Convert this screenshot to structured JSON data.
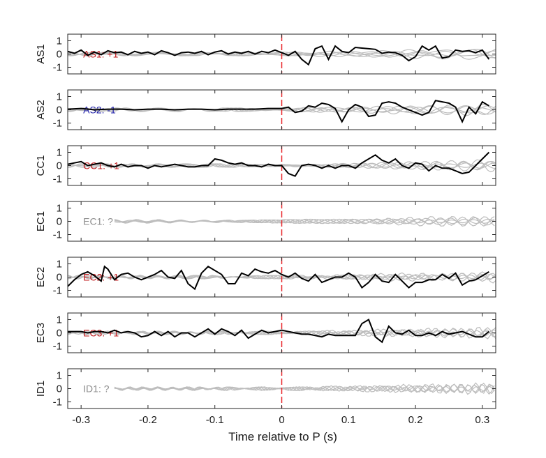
{
  "figure": {
    "xlabel": "Time relative to P (s)"
  },
  "chart_data": {
    "type": "line",
    "xlim": [
      -0.32,
      0.32
    ],
    "ylim": [
      -1.5,
      1.5
    ],
    "x_ticks": [
      -0.3,
      -0.2,
      -0.1,
      0,
      0.1,
      0.2,
      0.3
    ],
    "x_tick_labels": [
      "-0.3",
      "-0.2",
      "-0.1",
      "0",
      "0.1",
      "0.2",
      "0.3"
    ],
    "y_ticks": [
      1,
      0,
      -1
    ],
    "y_tick_labels": [
      "1",
      "0",
      "-1"
    ],
    "marker_x": 0,
    "colors": {
      "trace": "#000000",
      "background": "#bdbdbd",
      "marker": "#e8262a",
      "up": "#c0191b",
      "down": "#1a1aa8",
      "unknown": "#8c8c8c"
    },
    "panels": [
      {
        "station": "AS1",
        "label": "AS1: +1",
        "polarity": "up",
        "series": [
          {
            "x": [
              -0.32,
              -0.31,
              -0.3,
              -0.29,
              -0.28,
              -0.27,
              -0.26,
              -0.25,
              -0.24,
              -0.23,
              -0.22,
              -0.21,
              -0.2,
              -0.19,
              -0.18,
              -0.17,
              -0.16,
              -0.15,
              -0.14,
              -0.13,
              -0.12,
              -0.11,
              -0.1,
              -0.09,
              -0.08,
              -0.07,
              -0.06,
              -0.05,
              -0.04,
              -0.03,
              -0.02,
              -0.01,
              0,
              0.01,
              0.02,
              0.03,
              0.04,
              0.05,
              0.06,
              0.07,
              0.08,
              0.09,
              0.1,
              0.11,
              0.12,
              0.13,
              0.14,
              0.15,
              0.16,
              0.17,
              0.18,
              0.19,
              0.2,
              0.21,
              0.22,
              0.23,
              0.24,
              0.25,
              0.26,
              0.27,
              0.28,
              0.29,
              0.3,
              0.31
            ],
            "y": [
              0.2,
              0.05,
              0.3,
              -0.1,
              0.15,
              -0.05,
              0.25,
              0.1,
              0.15,
              -0.05,
              0.2,
              0.05,
              0.15,
              -0.05,
              0.25,
              0.1,
              -0.1,
              0.1,
              0.15,
              0.05,
              0.2,
              -0.05,
              0.15,
              0.25,
              0,
              0.15,
              0.05,
              0.2,
              0,
              0.2,
              0.1,
              0.3,
              0.1,
              -0.1,
              0.2,
              -0.4,
              -0.8,
              0.4,
              0.6,
              -0.4,
              0.6,
              0.2,
              0.1,
              0.5,
              0.45,
              0.4,
              0.35,
              0.05,
              0.15,
              0.1,
              -0.1,
              -0.5,
              -0.2,
              0.6,
              0.3,
              0.6,
              -0.3,
              -0.2,
              0.3,
              0.2,
              0.25,
              0.1,
              0.3,
              -0.4
            ]
          }
        ]
      },
      {
        "station": "AS2",
        "label": "AS2: -1",
        "polarity": "down",
        "series": [
          {
            "x": [
              -0.32,
              -0.3,
              -0.28,
              -0.26,
              -0.24,
              -0.22,
              -0.2,
              -0.18,
              -0.16,
              -0.14,
              -0.12,
              -0.1,
              -0.08,
              -0.06,
              -0.04,
              -0.02,
              0,
              0.01,
              0.02,
              0.03,
              0.04,
              0.05,
              0.06,
              0.07,
              0.08,
              0.09,
              0.1,
              0.11,
              0.12,
              0.13,
              0.14,
              0.15,
              0.16,
              0.17,
              0.18,
              0.19,
              0.2,
              0.21,
              0.22,
              0.23,
              0.24,
              0.25,
              0.26,
              0.27,
              0.28,
              0.29,
              0.3,
              0.31
            ],
            "y": [
              0.05,
              0.1,
              0,
              0.05,
              0.05,
              0,
              0.05,
              0.05,
              0,
              0.05,
              0.05,
              0,
              0.05,
              0.05,
              0.05,
              0.1,
              0.1,
              0.2,
              -0.2,
              -0.1,
              0.3,
              0.2,
              0.5,
              0.4,
              0.1,
              -0.9,
              0,
              0.4,
              0.2,
              -0.5,
              -0.4,
              0.5,
              0.6,
              0.5,
              0.2,
              0,
              -0.2,
              -0.4,
              -0.2,
              0.7,
              0.6,
              0.5,
              0.2,
              -0.9,
              0.2,
              -0.3,
              0.6,
              0.3
            ]
          }
        ]
      },
      {
        "station": "CC1",
        "label": "CC1: +1",
        "polarity": "up",
        "series": [
          {
            "x": [
              -0.32,
              -0.31,
              -0.3,
              -0.29,
              -0.28,
              -0.27,
              -0.26,
              -0.25,
              -0.24,
              -0.23,
              -0.22,
              -0.21,
              -0.2,
              -0.19,
              -0.18,
              -0.17,
              -0.16,
              -0.15,
              -0.14,
              -0.13,
              -0.12,
              -0.11,
              -0.1,
              -0.09,
              -0.08,
              -0.07,
              -0.06,
              -0.05,
              -0.04,
              -0.03,
              -0.02,
              -0.01,
              0,
              0.01,
              0.02,
              0.03,
              0.04,
              0.05,
              0.06,
              0.07,
              0.08,
              0.09,
              0.1,
              0.11,
              0.12,
              0.13,
              0.14,
              0.15,
              0.16,
              0.17,
              0.18,
              0.19,
              0.2,
              0.21,
              0.22,
              0.23,
              0.24,
              0.25,
              0.26,
              0.27,
              0.28,
              0.29,
              0.3,
              0.31
            ],
            "y": [
              0.1,
              0.2,
              0.3,
              0,
              0.1,
              0.2,
              0,
              -0.1,
              0.1,
              -0.1,
              0,
              0,
              -0.2,
              0,
              -0.1,
              0,
              0.1,
              0,
              -0.1,
              -0.1,
              0,
              0,
              0.5,
              0.4,
              0.2,
              0.1,
              0.2,
              0,
              0,
              -0.1,
              0.1,
              0,
              0,
              -0.6,
              -0.8,
              0,
              0.1,
              0,
              -0.2,
              0,
              -0.2,
              0,
              0,
              -0.2,
              0.2,
              0.5,
              0.8,
              0.4,
              0.2,
              0.5,
              0,
              -0.2,
              0.2,
              0.1,
              -0.4,
              0,
              -0.2,
              -0.2,
              -0.4,
              -0.6,
              -0.5,
              0,
              0.5,
              1.0
            ]
          }
        ]
      },
      {
        "station": "EC1",
        "label": "EC1: ?",
        "polarity": "unknown",
        "series": []
      },
      {
        "station": "EC2",
        "label": "EC2: +1",
        "polarity": "up",
        "series": [
          {
            "x": [
              -0.32,
              -0.31,
              -0.3,
              -0.29,
              -0.28,
              -0.27,
              -0.265,
              -0.26,
              -0.25,
              -0.24,
              -0.23,
              -0.22,
              -0.21,
              -0.2,
              -0.19,
              -0.18,
              -0.17,
              -0.16,
              -0.15,
              -0.14,
              -0.13,
              -0.12,
              -0.11,
              -0.1,
              -0.09,
              -0.08,
              -0.07,
              -0.06,
              -0.05,
              -0.04,
              -0.03,
              -0.02,
              -0.01,
              0,
              0.01,
              0.02,
              0.03,
              0.04,
              0.05,
              0.06,
              0.07,
              0.08,
              0.09,
              0.1,
              0.11,
              0.12,
              0.13,
              0.14,
              0.15,
              0.16,
              0.17,
              0.18,
              0.19,
              0.2,
              0.21,
              0.22,
              0.23,
              0.24,
              0.25,
              0.26,
              0.27,
              0.28,
              0.29,
              0.3,
              0.31
            ],
            "y": [
              -0.7,
              -0.2,
              0.2,
              0.4,
              0.1,
              -0.3,
              0.8,
              0.6,
              -0.2,
              0.2,
              0.3,
              0,
              -0.2,
              0,
              0.2,
              0.5,
              0,
              -0.1,
              0.5,
              -0.5,
              -0.9,
              0.3,
              0.8,
              0.5,
              0.2,
              -0.5,
              -0.5,
              0.3,
              0.1,
              0.6,
              0.4,
              0.3,
              0.5,
              0.2,
              0,
              0.3,
              -0.1,
              -0.3,
              0.2,
              -0.4,
              -0.2,
              0,
              0,
              0.3,
              0,
              -0.8,
              -0.4,
              0.2,
              -0.3,
              -0.4,
              0.2,
              -0.3,
              -0.8,
              -0.4,
              -0.4,
              -0.2,
              -0.2,
              0.2,
              -0.1,
              0.3,
              -0.6,
              -0.3,
              -0.2,
              0.1,
              0.4
            ]
          }
        ]
      },
      {
        "station": "EC3",
        "label": "EC3: +1",
        "polarity": "up",
        "series": [
          {
            "x": [
              -0.32,
              -0.31,
              -0.3,
              -0.29,
              -0.28,
              -0.27,
              -0.26,
              -0.25,
              -0.24,
              -0.23,
              -0.22,
              -0.21,
              -0.2,
              -0.19,
              -0.18,
              -0.17,
              -0.16,
              -0.15,
              -0.14,
              -0.13,
              -0.12,
              -0.11,
              -0.1,
              -0.09,
              -0.08,
              -0.07,
              -0.06,
              -0.05,
              -0.04,
              -0.03,
              -0.02,
              -0.01,
              0,
              0.01,
              0.02,
              0.03,
              0.04,
              0.05,
              0.06,
              0.07,
              0.08,
              0.09,
              0.1,
              0.11,
              0.12,
              0.13,
              0.14,
              0.15,
              0.16,
              0.17,
              0.18,
              0.19,
              0.2,
              0.21,
              0.22,
              0.23,
              0.24,
              0.25,
              0.26,
              0.27,
              0.28,
              0.29,
              0.3,
              0.31
            ],
            "y": [
              0.1,
              0.1,
              0.1,
              0,
              0.1,
              0.1,
              0,
              0.2,
              0,
              0.1,
              0,
              -0.3,
              -0.2,
              0.1,
              -0.2,
              0.1,
              -0.3,
              0,
              0,
              -0.3,
              0,
              0.3,
              -0.1,
              0.3,
              0.1,
              -0.2,
              0.2,
              -0.4,
              -0.1,
              0.2,
              0,
              0.1,
              0.2,
              0.1,
              0,
              -0.1,
              -0.1,
              -0.2,
              -0.3,
              -0.1,
              -0.2,
              -0.2,
              -0.2,
              -0.2,
              0.7,
              1.0,
              -0.3,
              -0.7,
              0.5,
              0,
              -0.1,
              0.2,
              -0.2,
              -0.2,
              0,
              -0.2,
              0.1,
              -0.1,
              0,
              0.1,
              -0.1,
              -0.3,
              -0.3,
              0.1
            ]
          }
        ]
      },
      {
        "station": "ID1",
        "label": "ID1: ?",
        "polarity": "unknown",
        "series": []
      }
    ]
  }
}
